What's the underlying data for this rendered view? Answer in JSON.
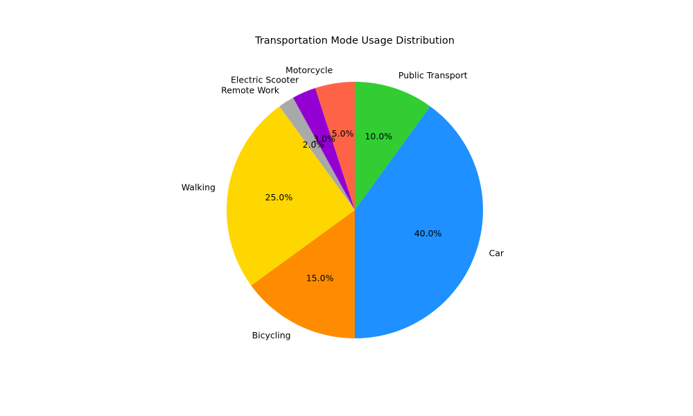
{
  "chart_data": {
    "type": "pie",
    "title": "Transportation Mode Usage Distribution",
    "start_angle_deg": 90,
    "direction": "clockwise",
    "slices": [
      {
        "label": "Public Transport",
        "value": 10.0,
        "pct_text": "10.0%",
        "color": "#32CD32"
      },
      {
        "label": "Car",
        "value": 40.0,
        "pct_text": "40.0%",
        "color": "#1E90FF"
      },
      {
        "label": "Bicycling",
        "value": 15.0,
        "pct_text": "15.0%",
        "color": "#FF8C00"
      },
      {
        "label": "Walking",
        "value": 25.0,
        "pct_text": "25.0%",
        "color": "#FFD700"
      },
      {
        "label": "Remote Work",
        "value": 2.0,
        "pct_text": "2.0%",
        "color": "#A9A9A9"
      },
      {
        "label": "Electric Scooter",
        "value": 3.0,
        "pct_text": "3.0%",
        "color": "#9400D3"
      },
      {
        "label": "Motorcycle",
        "value": 5.0,
        "pct_text": "5.0%",
        "color": "#FF6347"
      }
    ]
  }
}
